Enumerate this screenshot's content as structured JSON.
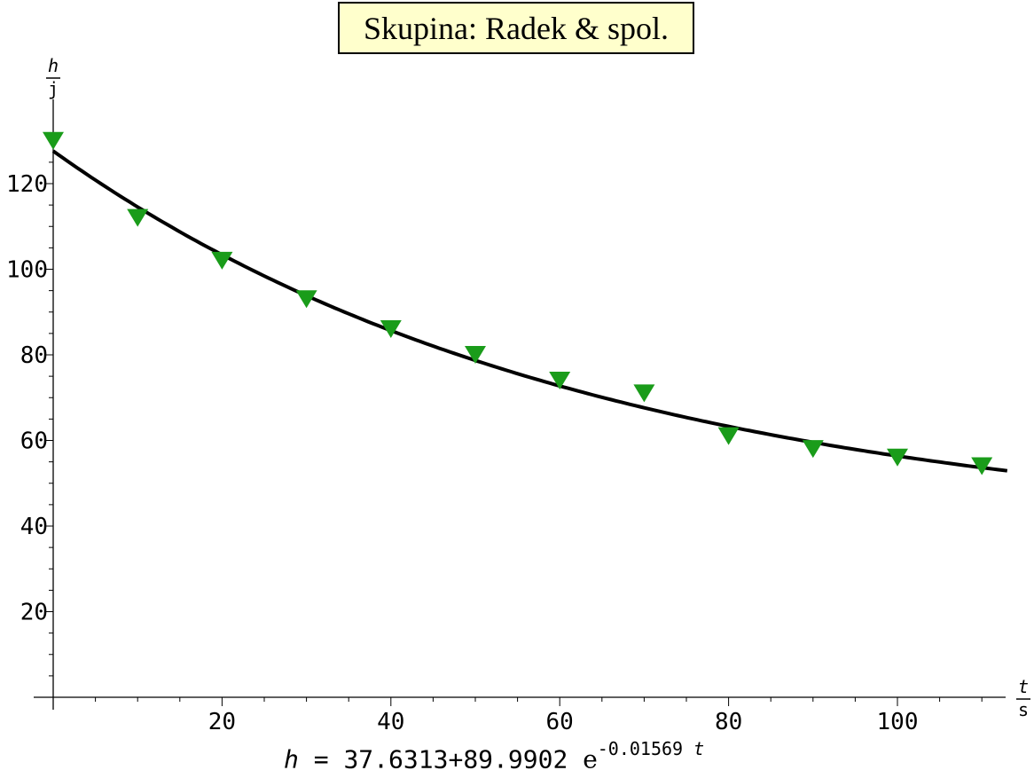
{
  "chart_data": {
    "type": "scatter",
    "title": "Skupina: Radek & spol.",
    "ylabel": {
      "numerator": "h",
      "denominator": "j"
    },
    "xlabel": {
      "numerator": "t",
      "denominator": "s"
    },
    "xlim": [
      0,
      113
    ],
    "ylim": [
      0,
      135
    ],
    "x_ticks": [
      20,
      40,
      60,
      80,
      100
    ],
    "y_ticks": [
      20,
      40,
      60,
      80,
      100,
      120
    ],
    "grid": false,
    "series": [
      {
        "type": "scatter",
        "marker": "triangle-down",
        "color": "#1a9c1a",
        "x": [
          0,
          10,
          20,
          30,
          40,
          50,
          60,
          70,
          80,
          90,
          100,
          110
        ],
        "y": [
          130,
          112,
          102,
          93,
          86,
          80,
          74,
          71,
          61,
          58,
          56,
          54
        ]
      },
      {
        "type": "line",
        "color": "#000000",
        "fit": {
          "a": 37.6313,
          "b": 89.9902,
          "k": -0.01569
        }
      }
    ],
    "equation": {
      "lhs": "h",
      "eq": "=",
      "a": "37.6313",
      "plus": "+",
      "b": "89.9902",
      "base": "e",
      "exponent": "-0.01569",
      "var": "t"
    }
  }
}
